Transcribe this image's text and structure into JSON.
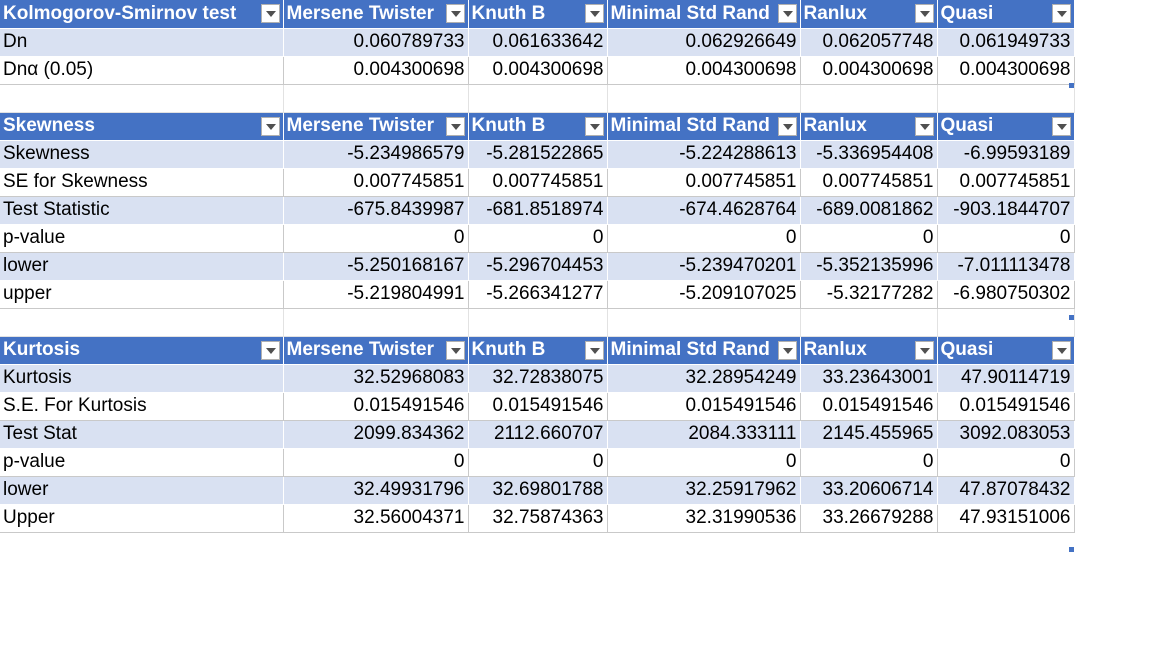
{
  "sections": [
    {
      "headers": [
        "Kolmogorov-Smirnov test",
        "Mersene Twister",
        "Knuth B",
        "Minimal Std Rand",
        "Ranlux",
        "Quasi"
      ],
      "rows": [
        [
          "Dn",
          "0.060789733",
          "0.061633642",
          "0.062926649",
          "0.062057748",
          "0.061949733"
        ],
        [
          "Dnα  (0.05)",
          "0.004300698",
          "0.004300698",
          "0.004300698",
          "0.004300698",
          "0.004300698"
        ]
      ]
    },
    {
      "headers": [
        "Skewness",
        "Mersene Twister",
        "Knuth B",
        "Minimal Std Rand",
        "Ranlux",
        "Quasi"
      ],
      "rows": [
        [
          "Skewness",
          "-5.234986579",
          "-5.281522865",
          "-5.224288613",
          "-5.336954408",
          "-6.99593189"
        ],
        [
          "SE for Skewness",
          "0.007745851",
          "0.007745851",
          "0.007745851",
          "0.007745851",
          "0.007745851"
        ],
        [
          "Test Statistic",
          "-675.8439987",
          "-681.8518974",
          "-674.4628764",
          "-689.0081862",
          "-903.1844707"
        ],
        [
          "p-value",
          "0",
          "0",
          "0",
          "0",
          "0"
        ],
        [
          "lower",
          "-5.250168167",
          "-5.296704453",
          "-5.239470201",
          "-5.352135996",
          "-7.011113478"
        ],
        [
          "upper",
          "-5.219804991",
          "-5.266341277",
          "-5.209107025",
          "-5.32177282",
          "-6.980750302"
        ]
      ]
    },
    {
      "headers": [
        "Kurtosis",
        "Mersene Twister",
        "Knuth B",
        "Minimal Std Rand",
        "Ranlux",
        "Quasi"
      ],
      "rows": [
        [
          "Kurtosis",
          "32.52968083",
          "32.72838075",
          "32.28954249",
          "33.23643001",
          "47.90114719"
        ],
        [
          "S.E. For Kurtosis",
          "0.015491546",
          "0.015491546",
          "0.015491546",
          "0.015491546",
          "0.015491546"
        ],
        [
          "Test Stat",
          "2099.834362",
          "2112.660707",
          "2084.333111",
          "2145.455965",
          "3092.083053"
        ],
        [
          "p-value",
          "0",
          "0",
          "0",
          "0",
          "0"
        ],
        [
          "lower",
          "32.49931796",
          "32.69801788",
          "32.25917962",
          "33.20606714",
          "47.87078432"
        ],
        [
          "Upper",
          "32.56004371",
          "32.75874363",
          "32.31990536",
          "33.26679288",
          "47.93151006"
        ]
      ]
    }
  ],
  "colors": {
    "header_bg": "#4472c4",
    "header_text": "#ffffff",
    "band": "#d9e1f2"
  },
  "icons": {
    "filter": "chevron-down-icon"
  }
}
